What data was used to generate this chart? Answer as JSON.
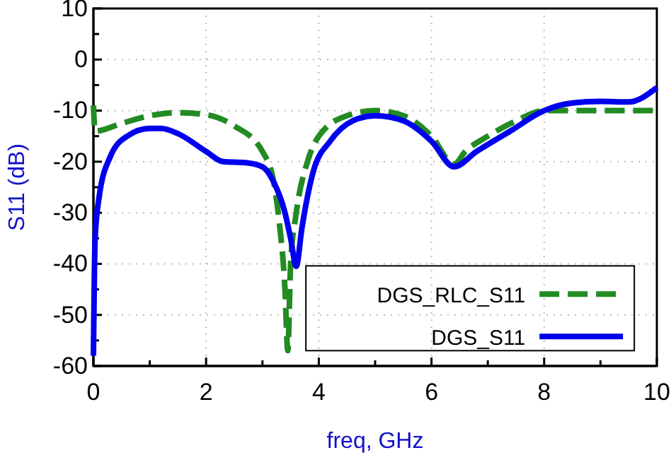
{
  "chart_data": {
    "type": "line",
    "xlabel": "freq, GHz",
    "ylabel": "S11 (dB)",
    "xlim": [
      0,
      10
    ],
    "ylim": [
      -60,
      10
    ],
    "xticks": [
      0,
      {
        "value": 1,
        "label": null
      },
      2,
      {
        "value": 3,
        "label": null
      },
      4,
      {
        "value": 5,
        "label": null
      },
      6,
      {
        "value": 7,
        "label": null
      },
      8,
      {
        "value": 9,
        "label": null
      },
      10
    ],
    "yticks": [
      -60,
      {
        "value": -55,
        "label": null
      },
      -50,
      {
        "value": -45,
        "label": null
      },
      -40,
      {
        "value": -35,
        "label": null
      },
      -30,
      {
        "value": -25,
        "label": null
      },
      -20,
      {
        "value": -15,
        "label": null
      },
      -10,
      {
        "value": -5,
        "label": null
      },
      0,
      {
        "value": 5,
        "label": null
      },
      10
    ],
    "grid": true,
    "legend": "bottom right",
    "series": [
      {
        "name": "DGS_RLC_S11",
        "color": "#228b22",
        "line_style": "dashed",
        "x": [
          0,
          0.03,
          0.5,
          1,
          1.5,
          2,
          2.5,
          3,
          3.2,
          3.3,
          3.4,
          3.45,
          3.5,
          3.6,
          3.8,
          4,
          4.5,
          5,
          5.5,
          6,
          6.4,
          6.6,
          7,
          7.5,
          8,
          8.5,
          9,
          10
        ],
        "values": [
          -9,
          -14,
          -12.5,
          -11,
          -10.4,
          -10.8,
          -13,
          -18,
          -24,
          -32,
          -45,
          -57,
          -40,
          -30,
          -20,
          -15,
          -11,
          -10,
          -11,
          -15,
          -20.5,
          -18,
          -15,
          -12,
          -10,
          -10,
          -10,
          -10
        ]
      },
      {
        "name": "DGS_S11",
        "color": "#0000ee",
        "line_style": "solid",
        "x": [
          0,
          0.03,
          0.1,
          0.3,
          0.6,
          1,
          1.2,
          1.5,
          2,
          2.3,
          2.7,
          3,
          3.2,
          3.4,
          3.5,
          3.6,
          3.7,
          3.9,
          4.2,
          4.6,
          5,
          5.5,
          6,
          6.4,
          6.8,
          7.4,
          8,
          8.5,
          9,
          9.5,
          10
        ],
        "values": [
          -58,
          -35,
          -27,
          -19,
          -15,
          -13.5,
          -13.5,
          -14.5,
          -18,
          -20,
          -20.2,
          -21,
          -24,
          -30,
          -35,
          -40.5,
          -33,
          -22,
          -16,
          -12,
          -11,
          -12,
          -16,
          -21,
          -18,
          -14,
          -10,
          -8.5,
          -8.2,
          -8.3,
          -5.5
        ]
      }
    ]
  }
}
